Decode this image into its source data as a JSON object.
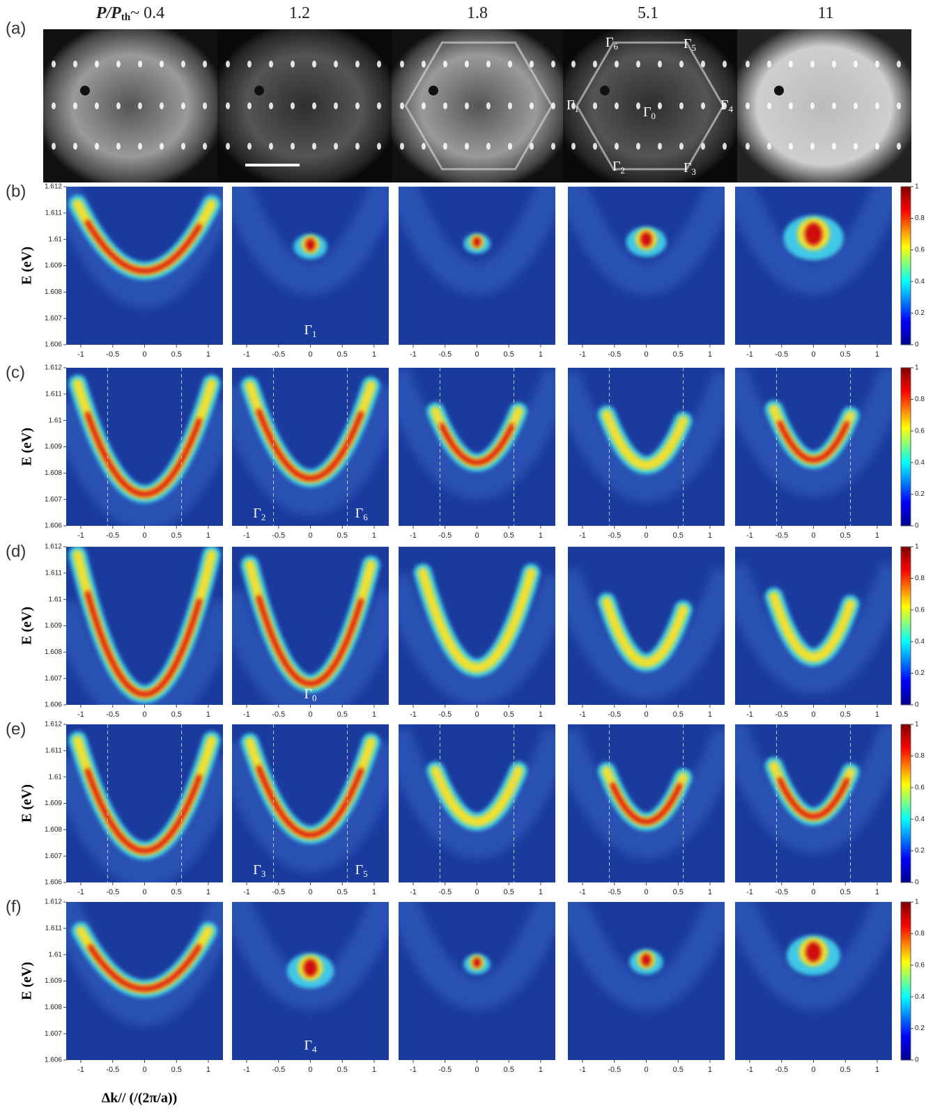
{
  "column_titles": {
    "ratio": "P/P",
    "ratio_sub": "th",
    "values": [
      "~ 0.4",
      "1.2",
      "1.8",
      "5.1",
      "11"
    ]
  },
  "figure_a": {
    "label": "(a)",
    "gamma": [
      {
        "symbol": "Γ",
        "sub": "6"
      },
      {
        "symbol": "Γ",
        "sub": "5"
      },
      {
        "symbol": "Γ",
        "sub": "1"
      },
      {
        "symbol": "Γ",
        "sub": "0"
      },
      {
        "symbol": "Γ",
        "sub": "4"
      },
      {
        "symbol": "Γ",
        "sub": "2"
      },
      {
        "symbol": "Γ",
        "sub": "3"
      }
    ]
  },
  "y_axis_label": "E (eV)",
  "x_axis_label": "Δk// (/(2π/a))",
  "ylim": [
    1.606,
    1.612
  ],
  "yticks": [
    1.606,
    1.607,
    1.608,
    1.609,
    1.61,
    1.611,
    1.612
  ],
  "xlim": [
    -1.23,
    1.23
  ],
  "xticks": [
    -1,
    -0.5,
    0,
    0.5,
    1
  ],
  "colorbar_lim": [
    0,
    1
  ],
  "colorbar_ticks": [
    0,
    0.2,
    0.4,
    0.6,
    0.8,
    1
  ],
  "rows": [
    {
      "label": "(b)",
      "gamma": [
        {
          "symbol": "Γ",
          "sub": "1"
        }
      ]
    },
    {
      "label": "(c)",
      "gamma": [
        {
          "symbol": "Γ",
          "sub": "2"
        },
        {
          "symbol": "Γ",
          "sub": "6"
        }
      ],
      "dashed_k": [
        -0.58,
        0.58
      ]
    },
    {
      "label": "(d)",
      "gamma": [
        {
          "symbol": "Γ",
          "sub": "0"
        }
      ]
    },
    {
      "label": "(e)",
      "gamma": [
        {
          "symbol": "Γ",
          "sub": "3"
        },
        {
          "symbol": "Γ",
          "sub": "5"
        }
      ],
      "dashed_k": [
        -0.58,
        0.58
      ]
    },
    {
      "label": "(f)",
      "gamma": [
        {
          "symbol": "Γ",
          "sub": "4"
        }
      ]
    }
  ]
}
